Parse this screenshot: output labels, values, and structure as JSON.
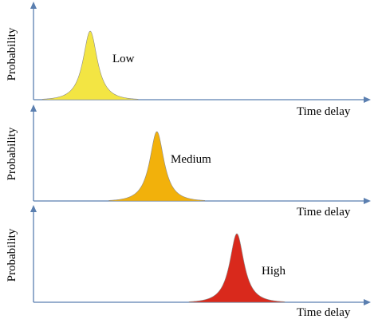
{
  "panels": [
    {
      "ylabel": "Probability",
      "xlabel": "Time delay",
      "peak_label": "Low",
      "curve_color": "#f3e543",
      "peak_time_fraction": 0.17
    },
    {
      "ylabel": "Probability",
      "xlabel": "Time delay",
      "peak_label": "Medium",
      "curve_color": "#f2b10b",
      "peak_time_fraction": 0.37
    },
    {
      "ylabel": "Probability",
      "xlabel": "Time delay",
      "peak_label": "High",
      "curve_color": "#d9291c",
      "peak_time_fraction": 0.61
    }
  ]
}
